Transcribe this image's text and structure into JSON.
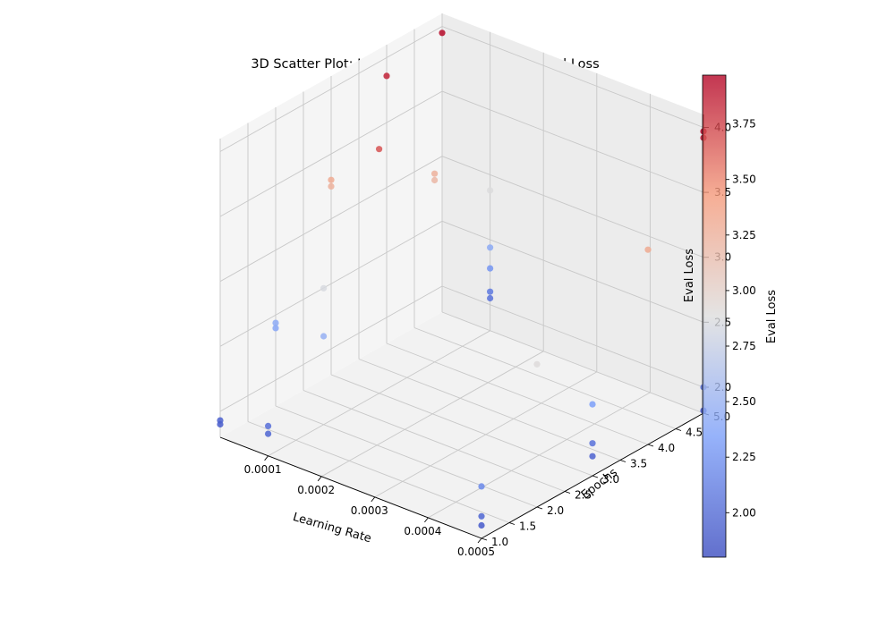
{
  "chart_data": {
    "type": "scatter",
    "projection": "3d",
    "title": "3D Scatter Plot: Learning Rate vs Epochs vs Eval Loss",
    "xlabel": "Learning Rate",
    "ylabel": "Epochs",
    "zlabel": "Eval Loss",
    "colorbar_label": "Eval Loss",
    "colormap": "coolwarm",
    "xlim": [
      1e-05,
      0.0005
    ],
    "ylim": [
      1.0,
      5.0
    ],
    "zlim": [
      1.8,
      4.1
    ],
    "clim": [
      1.8,
      3.97
    ],
    "x_ticks": [
      "0.0001",
      "0.0002",
      "0.0003",
      "0.0004",
      "0.0005"
    ],
    "x_tick_values": [
      0.0001,
      0.0002,
      0.0003,
      0.0004,
      0.0005
    ],
    "y_ticks": [
      "1.0",
      "1.5",
      "2.0",
      "2.5",
      "3.0",
      "3.5",
      "4.0",
      "4.5",
      "5.0"
    ],
    "y_tick_values": [
      1.0,
      1.5,
      2.0,
      2.5,
      3.0,
      3.5,
      4.0,
      4.5,
      5.0
    ],
    "z_ticks": [
      "2.0",
      "2.5",
      "3.0",
      "3.5",
      "4.0"
    ],
    "z_tick_values": [
      2.0,
      2.5,
      3.0,
      3.5,
      4.0
    ],
    "colorbar_ticks": [
      "2.00",
      "2.25",
      "2.50",
      "2.75",
      "3.00",
      "3.25",
      "3.50",
      "3.75"
    ],
    "colorbar_tick_values": [
      2.0,
      2.25,
      2.5,
      2.75,
      3.0,
      3.25,
      3.5,
      3.75
    ],
    "grid": true,
    "points": [
      {
        "x": 1e-05,
        "y": 1.0,
        "z": 1.9
      },
      {
        "x": 1e-05,
        "y": 1.0,
        "z": 1.93
      },
      {
        "x": 1e-05,
        "y": 2.0,
        "z": 2.4
      },
      {
        "x": 1e-05,
        "y": 2.0,
        "z": 2.44
      },
      {
        "x": 1e-05,
        "y": 3.0,
        "z": 3.25
      },
      {
        "x": 1e-05,
        "y": 3.0,
        "z": 3.3
      },
      {
        "x": 1e-05,
        "y": 4.0,
        "z": 3.86
      },
      {
        "x": 1e-05,
        "y": 5.0,
        "z": 3.95
      },
      {
        "x": 0.0001,
        "y": 1.0,
        "z": 1.97
      },
      {
        "x": 0.0001,
        "y": 1.0,
        "z": 2.03
      },
      {
        "x": 0.0001,
        "y": 2.0,
        "z": 2.48
      },
      {
        "x": 0.0001,
        "y": 2.0,
        "z": 2.85
      },
      {
        "x": 0.0001,
        "y": 3.0,
        "z": 3.68
      },
      {
        "x": 0.0001,
        "y": 4.0,
        "z": 3.2
      },
      {
        "x": 0.0001,
        "y": 4.0,
        "z": 3.25
      },
      {
        "x": 0.0001,
        "y": 5.0,
        "z": 2.88
      },
      {
        "x": 0.0001,
        "y": 5.0,
        "z": 2.44
      },
      {
        "x": 0.0001,
        "y": 5.0,
        "z": 2.28
      },
      {
        "x": 0.0001,
        "y": 5.0,
        "z": 2.1
      },
      {
        "x": 0.0001,
        "y": 5.0,
        "z": 2.05
      },
      {
        "x": 0.0005,
        "y": 1.0,
        "z": 1.9
      },
      {
        "x": 0.0005,
        "y": 1.0,
        "z": 1.97
      },
      {
        "x": 0.0005,
        "y": 1.0,
        "z": 2.2
      },
      {
        "x": 0.0005,
        "y": 2.0,
        "z": 2.9
      },
      {
        "x": 0.0005,
        "y": 3.0,
        "z": 1.95
      },
      {
        "x": 0.0005,
        "y": 3.0,
        "z": 2.05
      },
      {
        "x": 0.0005,
        "y": 3.0,
        "z": 2.35
      },
      {
        "x": 0.0005,
        "y": 4.0,
        "z": 3.3
      },
      {
        "x": 0.0005,
        "y": 5.0,
        "z": 1.82
      },
      {
        "x": 0.0005,
        "y": 5.0,
        "z": 2.0
      },
      {
        "x": 0.0005,
        "y": 5.0,
        "z": 3.92
      },
      {
        "x": 0.0005,
        "y": 5.0,
        "z": 3.97
      }
    ]
  }
}
